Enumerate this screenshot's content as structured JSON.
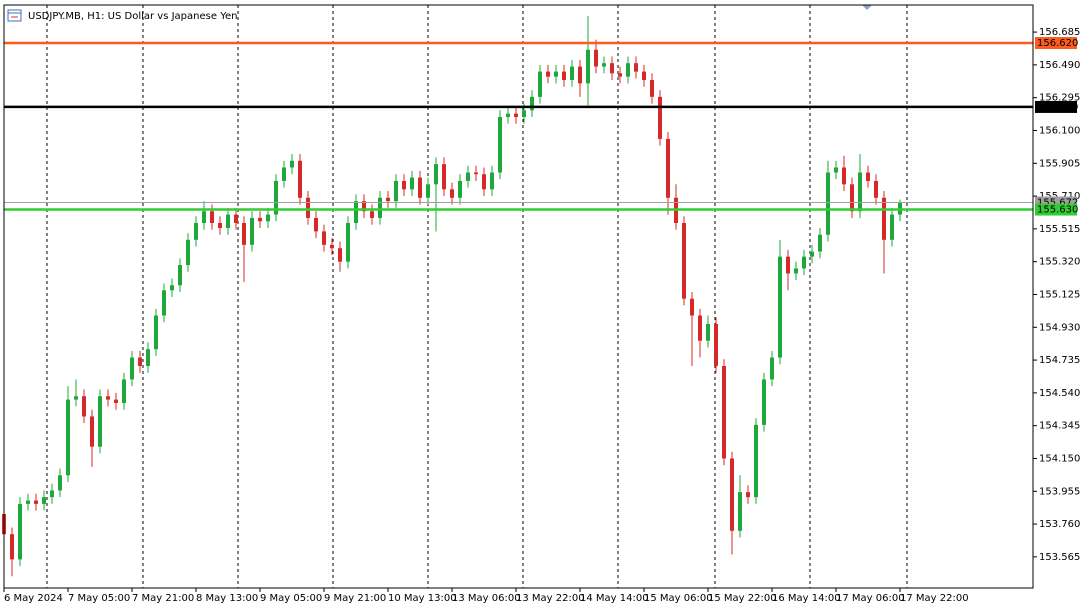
{
  "chart_data": {
    "type": "candlestick",
    "title": "USDJPY.MB, H1:  US Dollar vs Japanese Yen",
    "up_color": "#1fa83a",
    "down_color": "#d62a2a",
    "ylim": [
      153.38,
      156.846
    ],
    "yticks": [
      {
        "value": 153.565,
        "label": "153.565"
      },
      {
        "value": 153.76,
        "label": "153.760"
      },
      {
        "value": 153.955,
        "label": "153.955"
      },
      {
        "value": 154.15,
        "label": "154.150"
      },
      {
        "value": 154.345,
        "label": "154.345"
      },
      {
        "value": 154.54,
        "label": "154.540"
      },
      {
        "value": 154.735,
        "label": "154.735"
      },
      {
        "value": 154.93,
        "label": "154.930"
      },
      {
        "value": 155.125,
        "label": "155.125"
      },
      {
        "value": 155.32,
        "label": "155.320"
      },
      {
        "value": 155.515,
        "label": "155.515"
      },
      {
        "value": 155.71,
        "label": "155.710"
      },
      {
        "value": 155.905,
        "label": "155.905"
      },
      {
        "value": 156.1,
        "label": "156.100"
      },
      {
        "value": 156.295,
        "label": "156.295"
      },
      {
        "value": 156.49,
        "label": "156.490"
      },
      {
        "value": 156.685,
        "label": "156.685"
      }
    ],
    "levels": [
      {
        "value": 156.62,
        "label": "156.620",
        "color": "#ff5a1f"
      },
      {
        "value": 156.24,
        "label": "156.240",
        "color": "#000000"
      },
      {
        "value": 155.672,
        "label": "155.672",
        "color": "#a0a0a0"
      },
      {
        "value": 155.63,
        "label": "155.630",
        "color": "#33cc33"
      }
    ],
    "categories": [
      "6 May 2024",
      null,
      null,
      null,
      null,
      null,
      null,
      null,
      "7 May 05:00",
      null,
      null,
      null,
      null,
      null,
      null,
      null,
      "7 May 21:00",
      null,
      null,
      null,
      null,
      null,
      null,
      null,
      "8 May 13:00",
      null,
      null,
      null,
      null,
      null,
      null,
      null,
      "9 May 05:00",
      null,
      null,
      null,
      null,
      null,
      null,
      null,
      "9 May 21:00",
      null,
      null,
      null,
      null,
      null,
      null,
      null,
      "10 May 13:00",
      null,
      null,
      null,
      null,
      null,
      null,
      null,
      "13 May 06:00",
      null,
      null,
      null,
      null,
      null,
      null,
      null,
      "13 May 22:00",
      null,
      null,
      null,
      null,
      null,
      null,
      null,
      "14 May 14:00",
      null,
      null,
      null,
      null,
      null,
      null,
      null,
      "15 May 06:00",
      null,
      null,
      null,
      null,
      null,
      null,
      null,
      "15 May 22:00",
      null,
      null,
      null,
      null,
      null,
      null,
      null,
      "16 May 14:00",
      null,
      null,
      null,
      null,
      null,
      null,
      null,
      "17 May 06:00",
      null,
      null,
      null,
      null,
      null,
      null,
      null,
      "17 May 22:00"
    ],
    "open": [
      153.82,
      153.7,
      153.55,
      153.88,
      153.9,
      153.88,
      153.92,
      153.96,
      154.05,
      154.5,
      154.52,
      154.4,
      154.22,
      154.52,
      154.5,
      154.48,
      154.62,
      154.75,
      154.7,
      154.8,
      155.0,
      155.15,
      155.18,
      155.3,
      155.45,
      155.55,
      155.62,
      155.55,
      155.52,
      155.6,
      155.55,
      155.42,
      155.58,
      155.56,
      155.6,
      155.8,
      155.88,
      155.92,
      155.7,
      155.58,
      155.5,
      155.42,
      155.4,
      155.32,
      155.55,
      155.68,
      155.62,
      155.58,
      155.7,
      155.68,
      155.8,
      155.75,
      155.82,
      155.7,
      155.78,
      155.9,
      155.75,
      155.7,
      155.8,
      155.85,
      155.84,
      155.75,
      155.85,
      156.18,
      156.2,
      156.18,
      156.22,
      156.3,
      156.45,
      156.42,
      156.45,
      156.4,
      156.48,
      156.38,
      156.58,
      156.48,
      156.5,
      156.44,
      156.42,
      156.5,
      156.45,
      156.4,
      156.3,
      156.05,
      155.7,
      155.55,
      155.1,
      155.0,
      154.85,
      154.95,
      154.7,
      154.15,
      153.72,
      153.95,
      153.92,
      154.35,
      154.62,
      154.75,
      155.35,
      155.25,
      155.28,
      155.35,
      155.38,
      155.48,
      155.85,
      155.88,
      155.78,
      155.62,
      155.85,
      155.8,
      155.7,
      155.45,
      155.6
    ],
    "high": [
      153.86,
      153.74,
      153.92,
      153.94,
      153.94,
      153.96,
      154.0,
      154.09,
      154.58,
      154.62,
      154.56,
      154.44,
      154.56,
      154.56,
      154.54,
      154.66,
      154.79,
      154.79,
      154.84,
      155.04,
      155.19,
      155.22,
      155.34,
      155.49,
      155.59,
      155.68,
      155.66,
      155.59,
      155.64,
      155.64,
      155.59,
      155.62,
      155.62,
      155.64,
      155.84,
      155.92,
      155.96,
      155.96,
      155.74,
      155.62,
      155.54,
      155.46,
      155.44,
      155.59,
      155.72,
      155.72,
      155.66,
      155.74,
      155.74,
      155.84,
      155.84,
      155.86,
      155.86,
      155.82,
      155.94,
      155.94,
      155.79,
      155.84,
      155.89,
      155.89,
      155.88,
      155.89,
      156.22,
      156.24,
      156.24,
      156.26,
      156.34,
      156.49,
      156.49,
      156.49,
      156.49,
      156.52,
      156.52,
      156.78,
      156.64,
      156.54,
      156.54,
      156.48,
      156.54,
      156.54,
      156.49,
      156.44,
      156.34,
      156.09,
      155.78,
      155.59,
      155.14,
      155.04,
      155.0,
      154.99,
      154.74,
      154.19,
      154.05,
      153.99,
      154.39,
      154.66,
      154.79,
      155.45,
      155.39,
      155.32,
      155.39,
      155.42,
      155.52,
      155.92,
      155.92,
      155.95,
      155.82,
      155.96,
      155.89,
      155.84,
      155.74,
      155.64,
      155.69
    ],
    "low": [
      153.66,
      153.45,
      153.51,
      153.84,
      153.84,
      153.84,
      153.88,
      153.92,
      154.01,
      154.46,
      154.36,
      154.1,
      154.18,
      154.46,
      154.44,
      154.44,
      154.58,
      154.66,
      154.66,
      154.76,
      154.96,
      155.11,
      155.14,
      155.26,
      155.41,
      155.51,
      155.51,
      155.48,
      155.48,
      155.51,
      155.2,
      155.38,
      155.52,
      155.52,
      155.56,
      155.76,
      155.84,
      155.66,
      155.54,
      155.46,
      155.38,
      155.36,
      155.26,
      155.28,
      155.51,
      155.58,
      155.54,
      155.54,
      155.64,
      155.64,
      155.71,
      155.71,
      155.66,
      155.66,
      155.5,
      155.71,
      155.66,
      155.66,
      155.76,
      155.8,
      155.71,
      155.71,
      155.81,
      156.14,
      156.14,
      156.14,
      156.18,
      156.26,
      156.38,
      156.38,
      156.36,
      156.36,
      156.3,
      156.25,
      156.44,
      156.44,
      156.4,
      156.38,
      156.38,
      156.41,
      156.36,
      156.26,
      156.01,
      155.6,
      155.51,
      155.06,
      154.7,
      154.75,
      154.81,
      154.66,
      154.11,
      153.58,
      153.68,
      153.88,
      153.88,
      154.31,
      154.58,
      154.71,
      155.15,
      155.21,
      155.24,
      155.31,
      155.34,
      155.44,
      155.81,
      155.74,
      155.58,
      155.58,
      155.76,
      155.66,
      155.25,
      155.41,
      155.56
    ],
    "close": [
      153.7,
      153.55,
      153.88,
      153.9,
      153.88,
      153.92,
      153.96,
      154.05,
      154.5,
      154.52,
      154.4,
      154.22,
      154.52,
      154.5,
      154.48,
      154.62,
      154.75,
      154.7,
      154.8,
      155.0,
      155.15,
      155.18,
      155.3,
      155.45,
      155.55,
      155.62,
      155.55,
      155.52,
      155.6,
      155.55,
      155.42,
      155.58,
      155.56,
      155.6,
      155.8,
      155.88,
      155.92,
      155.7,
      155.58,
      155.5,
      155.42,
      155.4,
      155.32,
      155.55,
      155.68,
      155.62,
      155.58,
      155.7,
      155.68,
      155.8,
      155.75,
      155.82,
      155.7,
      155.78,
      155.9,
      155.75,
      155.7,
      155.8,
      155.85,
      155.84,
      155.75,
      155.85,
      156.18,
      156.2,
      156.18,
      156.22,
      156.3,
      156.45,
      156.42,
      156.45,
      156.4,
      156.48,
      156.38,
      156.58,
      156.48,
      156.5,
      156.44,
      156.42,
      156.5,
      156.45,
      156.4,
      156.3,
      156.05,
      155.7,
      155.55,
      155.1,
      155.0,
      154.85,
      154.95,
      154.7,
      154.15,
      153.72,
      153.95,
      153.92,
      154.35,
      154.62,
      154.75,
      155.35,
      155.25,
      155.28,
      155.35,
      155.38,
      155.48,
      155.85,
      155.88,
      155.78,
      155.62,
      155.85,
      155.8,
      155.7,
      155.45,
      155.6,
      155.67
    ]
  }
}
